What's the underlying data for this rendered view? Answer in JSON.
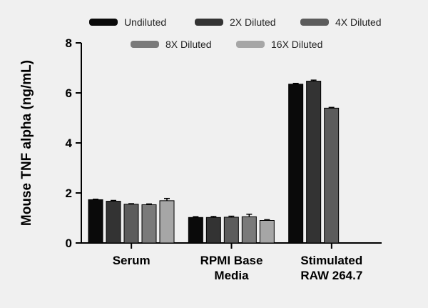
{
  "chart_data": {
    "type": "bar",
    "title": "",
    "xlabel": "",
    "ylabel": "Mouse TNF alpha (ng/mL)",
    "ylim": [
      0,
      8
    ],
    "yticks": [
      0,
      2,
      4,
      6,
      8
    ],
    "grid": false,
    "legend_position": "top",
    "categories": [
      [
        "Serum"
      ],
      [
        "RPMI Base",
        "Media"
      ],
      [
        "Stimulated",
        "RAW 264.7"
      ]
    ],
    "series": [
      {
        "name": "Undiluted",
        "color": "#0a0a0a",
        "values": [
          1.73,
          1.02,
          6.35
        ],
        "errors": [
          0.02,
          0.03,
          0.03
        ]
      },
      {
        "name": "2X Diluted",
        "color": "#333333",
        "values": [
          1.67,
          1.02,
          6.47
        ],
        "errors": [
          0.03,
          0.04,
          0.04
        ]
      },
      {
        "name": "4X Diluted",
        "color": "#5c5c5c",
        "values": [
          1.55,
          1.03,
          5.39
        ],
        "errors": [
          0.02,
          0.04,
          0.03
        ]
      },
      {
        "name": "8X Diluted",
        "color": "#7a7a7a",
        "values": [
          1.53,
          1.05,
          null
        ],
        "errors": [
          0.03,
          0.1,
          null
        ]
      },
      {
        "name": "16X Diluted",
        "color": "#a6a6a6",
        "values": [
          1.69,
          0.9,
          null
        ],
        "errors": [
          0.09,
          0.03,
          null
        ]
      }
    ]
  }
}
